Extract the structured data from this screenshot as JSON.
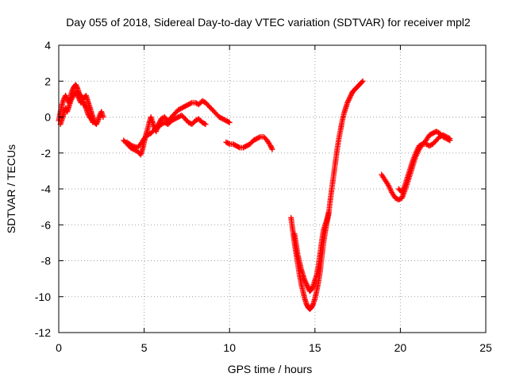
{
  "chart_data": {
    "type": "scatter",
    "title": "Day 055 of 2018, Sidereal Day-to-day VTEC variation (SDTVAR) for receiver mpl2",
    "xlabel": "GPS time / hours",
    "ylabel": "SDTVAR / TECUs",
    "xlim": [
      0,
      25
    ],
    "ylim": [
      -12,
      4
    ],
    "xticks": [
      0,
      5,
      10,
      15,
      20,
      25
    ],
    "yticks": [
      -12,
      -10,
      -8,
      -6,
      -4,
      -2,
      0,
      2,
      4
    ],
    "grid": true,
    "grid_style": "dotted",
    "marker": "plus",
    "color": "#ff0000",
    "series": [
      {
        "segments": [
          [
            [
              0.0,
              -0.2
            ],
            [
              0.1,
              0.3
            ],
            [
              0.2,
              0.7
            ],
            [
              0.3,
              1.0
            ],
            [
              0.4,
              1.2
            ],
            [
              0.5,
              1.0
            ],
            [
              0.6,
              0.8
            ],
            [
              0.7,
              1.2
            ],
            [
              0.8,
              1.5
            ],
            [
              0.9,
              1.7
            ],
            [
              1.0,
              1.8
            ],
            [
              1.1,
              1.6
            ],
            [
              1.2,
              1.3
            ],
            [
              1.3,
              1.2
            ],
            [
              1.4,
              1.0
            ],
            [
              1.5,
              1.1
            ],
            [
              1.6,
              1.2
            ],
            [
              1.7,
              0.9
            ],
            [
              1.8,
              0.6
            ],
            [
              1.9,
              0.3
            ],
            [
              2.0,
              0.0
            ],
            [
              2.1,
              -0.3
            ],
            [
              2.2,
              -0.4
            ],
            [
              2.3,
              -0.2
            ],
            [
              2.4,
              0.1
            ],
            [
              2.5,
              0.3
            ],
            [
              2.6,
              0.0
            ]
          ],
          [
            [
              0.1,
              -0.4
            ],
            [
              0.2,
              -0.1
            ],
            [
              0.3,
              0.2
            ],
            [
              0.4,
              0.5
            ],
            [
              0.5,
              0.3
            ],
            [
              0.6,
              0.6
            ],
            [
              0.7,
              0.9
            ],
            [
              0.8,
              1.1
            ],
            [
              0.9,
              1.3
            ],
            [
              1.0,
              1.4
            ],
            [
              1.1,
              1.2
            ],
            [
              1.2,
              1.0
            ],
            [
              1.3,
              0.8
            ],
            [
              1.4,
              0.9
            ],
            [
              1.5,
              0.7
            ],
            [
              1.6,
              0.5
            ],
            [
              1.7,
              0.2
            ],
            [
              1.8,
              0.0
            ],
            [
              1.9,
              -0.1
            ],
            [
              2.0,
              -0.3
            ]
          ],
          [
            [
              3.8,
              -1.3
            ],
            [
              4.0,
              -1.5
            ],
            [
              4.2,
              -1.7
            ],
            [
              4.4,
              -1.8
            ],
            [
              4.6,
              -1.9
            ],
            [
              4.8,
              -2.1
            ],
            [
              4.9,
              -1.8
            ],
            [
              5.0,
              -1.4
            ],
            [
              5.1,
              -1.0
            ],
            [
              5.2,
              -0.7
            ],
            [
              5.3,
              -0.3
            ],
            [
              5.4,
              0.0
            ],
            [
              5.5,
              -0.3
            ],
            [
              5.6,
              -0.6
            ],
            [
              5.7,
              -0.8
            ],
            [
              5.8,
              -0.5
            ],
            [
              5.9,
              -0.3
            ],
            [
              6.0,
              -0.1
            ],
            [
              6.2,
              0.0
            ],
            [
              6.4,
              -0.2
            ],
            [
              6.6,
              0.0
            ],
            [
              6.8,
              0.2
            ],
            [
              7.0,
              0.4
            ],
            [
              7.2,
              0.5
            ],
            [
              7.4,
              0.6
            ],
            [
              7.6,
              0.7
            ],
            [
              7.8,
              0.8
            ],
            [
              8.0,
              0.8
            ],
            [
              8.2,
              0.7
            ],
            [
              8.4,
              0.9
            ],
            [
              8.6,
              0.8
            ],
            [
              8.8,
              0.6
            ],
            [
              9.0,
              0.4
            ],
            [
              9.2,
              0.2
            ],
            [
              9.4,
              0.0
            ],
            [
              9.6,
              -0.1
            ],
            [
              9.8,
              -0.2
            ],
            [
              10.0,
              -0.3
            ]
          ],
          [
            [
              4.0,
              -1.4
            ],
            [
              4.3,
              -1.6
            ],
            [
              4.6,
              -1.7
            ],
            [
              4.8,
              -1.5
            ],
            [
              5.0,
              -1.2
            ],
            [
              5.2,
              -1.0
            ],
            [
              5.4,
              -0.9
            ],
            [
              5.6,
              -0.7
            ],
            [
              5.8,
              -0.6
            ],
            [
              6.0,
              -0.4
            ],
            [
              6.2,
              -0.3
            ],
            [
              6.4,
              -0.4
            ],
            [
              6.6,
              -0.2
            ],
            [
              6.8,
              -0.1
            ],
            [
              7.0,
              0.0
            ],
            [
              7.2,
              0.1
            ],
            [
              7.4,
              -0.1
            ],
            [
              7.6,
              -0.3
            ],
            [
              7.8,
              -0.4
            ],
            [
              8.0,
              -0.2
            ],
            [
              8.2,
              -0.1
            ],
            [
              8.4,
              -0.3
            ],
            [
              8.6,
              -0.4
            ]
          ],
          [
            [
              9.8,
              -1.4
            ],
            [
              10.0,
              -1.5
            ],
            [
              10.2,
              -1.5
            ],
            [
              10.4,
              -1.6
            ],
            [
              10.6,
              -1.7
            ],
            [
              10.8,
              -1.7
            ],
            [
              11.0,
              -1.6
            ],
            [
              11.2,
              -1.5
            ],
            [
              11.4,
              -1.3
            ],
            [
              11.6,
              -1.2
            ],
            [
              11.8,
              -1.1
            ],
            [
              12.0,
              -1.1
            ],
            [
              12.2,
              -1.3
            ],
            [
              12.4,
              -1.6
            ],
            [
              12.5,
              -1.8
            ]
          ],
          [
            [
              13.6,
              -5.6
            ],
            [
              13.7,
              -6.3
            ],
            [
              13.8,
              -7.0
            ],
            [
              13.9,
              -7.6
            ],
            [
              14.0,
              -8.2
            ],
            [
              14.1,
              -8.8
            ],
            [
              14.2,
              -9.3
            ],
            [
              14.3,
              -9.7
            ],
            [
              14.4,
              -10.1
            ],
            [
              14.5,
              -10.4
            ],
            [
              14.6,
              -10.6
            ],
            [
              14.7,
              -10.7
            ],
            [
              14.8,
              -10.6
            ],
            [
              14.9,
              -10.4
            ],
            [
              15.0,
              -10.1
            ],
            [
              15.1,
              -9.7
            ],
            [
              15.2,
              -9.2
            ],
            [
              15.3,
              -8.6
            ],
            [
              15.4,
              -7.8
            ],
            [
              15.5,
              -7.0
            ],
            [
              15.6,
              -6.4
            ],
            [
              15.7,
              -5.9
            ],
            [
              15.8,
              -5.4
            ],
            [
              15.9,
              -4.6
            ],
            [
              16.0,
              -3.9
            ],
            [
              16.1,
              -3.2
            ],
            [
              16.2,
              -2.5
            ],
            [
              16.3,
              -1.8
            ],
            [
              16.4,
              -1.2
            ],
            [
              16.5,
              -0.7
            ],
            [
              16.6,
              -0.2
            ],
            [
              16.7,
              0.2
            ],
            [
              16.8,
              0.5
            ],
            [
              16.9,
              0.8
            ],
            [
              17.0,
              1.0
            ],
            [
              17.1,
              1.2
            ],
            [
              17.2,
              1.4
            ],
            [
              17.3,
              1.5
            ],
            [
              17.4,
              1.6
            ],
            [
              17.5,
              1.7
            ],
            [
              17.6,
              1.8
            ],
            [
              17.7,
              1.9
            ],
            [
              17.8,
              2.0
            ]
          ],
          [
            [
              13.8,
              -6.5
            ],
            [
              13.9,
              -7.1
            ],
            [
              14.0,
              -7.7
            ],
            [
              14.1,
              -8.1
            ],
            [
              14.2,
              -8.5
            ],
            [
              14.3,
              -8.8
            ],
            [
              14.4,
              -9.1
            ],
            [
              14.5,
              -9.3
            ],
            [
              14.6,
              -9.5
            ],
            [
              14.7,
              -9.7
            ],
            [
              14.8,
              -9.6
            ],
            [
              14.9,
              -9.4
            ],
            [
              15.0,
              -9.1
            ],
            [
              15.1,
              -8.8
            ],
            [
              15.2,
              -8.3
            ],
            [
              15.3,
              -7.6
            ],
            [
              15.4,
              -6.9
            ],
            [
              15.5,
              -6.3
            ],
            [
              15.6,
              -6.0
            ],
            [
              15.7,
              -5.7
            ],
            [
              15.8,
              -5.3
            ]
          ],
          [
            [
              18.9,
              -3.2
            ],
            [
              19.1,
              -3.5
            ],
            [
              19.3,
              -3.8
            ],
            [
              19.5,
              -4.2
            ],
            [
              19.7,
              -4.5
            ],
            [
              19.9,
              -4.6
            ],
            [
              20.1,
              -4.5
            ],
            [
              20.3,
              -4.0
            ],
            [
              20.5,
              -3.4
            ],
            [
              20.7,
              -2.8
            ],
            [
              20.9,
              -2.2
            ],
            [
              21.1,
              -1.8
            ],
            [
              21.3,
              -1.5
            ],
            [
              21.5,
              -1.3
            ],
            [
              21.7,
              -1.0
            ],
            [
              21.9,
              -0.9
            ],
            [
              22.1,
              -0.8
            ],
            [
              22.3,
              -0.9
            ],
            [
              22.5,
              -1.1
            ],
            [
              22.7,
              -1.2
            ],
            [
              22.9,
              -1.3
            ]
          ],
          [
            [
              19.9,
              -4.0
            ],
            [
              20.1,
              -4.2
            ],
            [
              20.3,
              -3.7
            ],
            [
              20.5,
              -3.1
            ],
            [
              20.7,
              -2.5
            ],
            [
              20.9,
              -2.0
            ],
            [
              21.1,
              -1.6
            ],
            [
              21.3,
              -1.5
            ],
            [
              21.5,
              -1.5
            ],
            [
              21.7,
              -1.6
            ],
            [
              21.9,
              -1.5
            ],
            [
              22.1,
              -1.3
            ],
            [
              22.3,
              -1.1
            ],
            [
              22.5,
              -1.0
            ],
            [
              22.7,
              -1.1
            ],
            [
              22.9,
              -1.2
            ]
          ]
        ]
      }
    ]
  }
}
